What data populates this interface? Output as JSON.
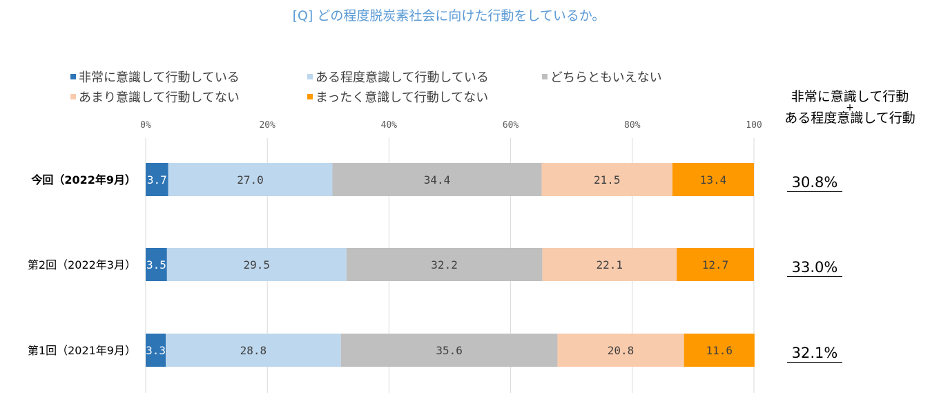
{
  "title": "[Q] どの程度脱炭素社会に向けた行動をしているか。",
  "legend": [
    {
      "label": "非常に意識して行動している",
      "color": "#2e75b6"
    },
    {
      "label": "ある程度意識して行動している",
      "color": "#bdd7ee"
    },
    {
      "label": "どちらともいえない",
      "color": "#bfbfbf"
    },
    {
      "label": "あまり意識して行動してない",
      "color": "#f8cbad"
    },
    {
      "label": "まったく意識して行動してない",
      "color": "#ff9900"
    }
  ],
  "summary": {
    "header_line1": "非常に意識して行動",
    "header_plus": "+",
    "header_line2": "ある程度意識して行動",
    "values": [
      "30.8%",
      "33.0%",
      "32.1%"
    ]
  },
  "chart_data": {
    "type": "bar",
    "orientation": "horizontal",
    "stacked": true,
    "categories": [
      "今回（2022年9月）",
      "第2回（2022年3月）",
      "第1回（2021年9月）"
    ],
    "series": [
      {
        "name": "非常に意識して行動している",
        "values": [
          3.7,
          3.5,
          3.3
        ]
      },
      {
        "name": "ある程度意識して行動している",
        "values": [
          27.0,
          29.5,
          28.8
        ]
      },
      {
        "name": "どちらともいえない",
        "values": [
          34.4,
          32.2,
          35.6
        ]
      },
      {
        "name": "あまり意識して行動してない",
        "values": [
          21.5,
          22.1,
          20.8
        ]
      },
      {
        "name": "まったく意識して行動してない",
        "values": [
          13.4,
          12.7,
          11.6
        ]
      }
    ],
    "value_labels": [
      [
        "3.7",
        "27.0",
        "34.4",
        "21.5",
        "13.4"
      ],
      [
        "3.5",
        "29.5",
        "32.2",
        "22.1",
        "12.7"
      ],
      [
        "3.3",
        "28.8",
        "35.6",
        "20.8",
        "11.6"
      ]
    ],
    "x_ticks": [
      "0%",
      "20%",
      "40%",
      "60%",
      "80%",
      "100"
    ],
    "xlim": [
      0,
      100
    ],
    "grid": true,
    "legend_position": "top-left"
  }
}
